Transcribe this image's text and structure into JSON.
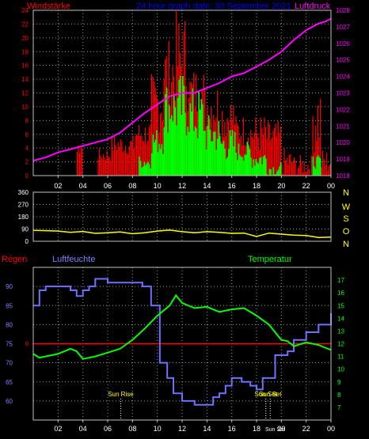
{
  "header": {
    "left_title": "Windstärke",
    "center_title": "24 hour graph date: 30 September 2021",
    "right_title": "Luftdruck"
  },
  "colors": {
    "background": "#000000",
    "frame": "#c0c0c0",
    "grid": "#9a9a9a",
    "wind_gust": "#ff0000",
    "wind_avg": "#00ff00",
    "pressure": "#ff00ff",
    "direction": "#ffff00",
    "humidity": "#7070ff",
    "temperature": "#00ff00",
    "rain": "#ff0000",
    "label_red": "#ff0000",
    "label_blue": "#0000ff",
    "label_magenta": "#ff00ff",
    "label_yellow": "#ffff00",
    "label_green": "#00ff00",
    "label_humidity": "#8080ff",
    "event_label": "#ffff00"
  },
  "x_ticks": [
    "02",
    "04",
    "06",
    "08",
    "10",
    "12",
    "14",
    "16",
    "18",
    "20",
    "22",
    "00"
  ],
  "chart_data": [
    {
      "type": "bar",
      "name": "wind",
      "ylabel": "Windstärke",
      "ylim": [
        0,
        24
      ],
      "y_ticks": [
        "0",
        "2",
        "4",
        "6",
        "8",
        "10",
        "12",
        "14",
        "16",
        "18",
        "20",
        "22",
        "24"
      ],
      "y2label": "Luftdruck",
      "y2lim": [
        1018,
        1028
      ],
      "y2_ticks": [
        "1018",
        "1019",
        "1020",
        "1021",
        "1022",
        "1023",
        "1024",
        "1025",
        "1026",
        "1027",
        "1028"
      ],
      "xlim": [
        0,
        24
      ],
      "grid": true,
      "gust_segments": [
        [
          2.0,
          3.5,
          0,
          0
        ],
        [
          3.5,
          4.0,
          3,
          5
        ],
        [
          4.0,
          5.2,
          0,
          0
        ],
        [
          5.2,
          6.3,
          2,
          4
        ],
        [
          6.3,
          8.2,
          3,
          6
        ],
        [
          8.2,
          9.5,
          4,
          8
        ],
        [
          9.5,
          10.5,
          6,
          15
        ],
        [
          10.5,
          11.5,
          10,
          20
        ],
        [
          11.5,
          12.6,
          9,
          24
        ],
        [
          12.6,
          13.8,
          8,
          16
        ],
        [
          13.8,
          15.0,
          6,
          14
        ],
        [
          15.0,
          16.3,
          5,
          12
        ],
        [
          16.3,
          17.5,
          4,
          9
        ],
        [
          17.5,
          18.8,
          3,
          9
        ],
        [
          18.8,
          20.0,
          3,
          8
        ],
        [
          20.0,
          21.0,
          0,
          4
        ],
        [
          21.0,
          22.5,
          0,
          3
        ],
        [
          22.5,
          23.2,
          3,
          14
        ],
        [
          23.2,
          24.0,
          0,
          4
        ]
      ],
      "avg_segments": [
        [
          8.5,
          9.5,
          1,
          3
        ],
        [
          9.5,
          10.5,
          3,
          7
        ],
        [
          10.5,
          11.5,
          6,
          14
        ],
        [
          11.5,
          12.6,
          5,
          15
        ],
        [
          12.6,
          13.8,
          4,
          13
        ],
        [
          13.8,
          15.0,
          3,
          9
        ],
        [
          15.0,
          16.3,
          2,
          7
        ],
        [
          16.3,
          17.5,
          2,
          5
        ],
        [
          17.5,
          18.8,
          1,
          4
        ],
        [
          18.8,
          20.0,
          0,
          2
        ],
        [
          22.5,
          23.2,
          1,
          3
        ]
      ],
      "pressure_x": [
        0,
        1,
        2,
        3,
        4,
        5,
        6,
        7,
        8,
        9,
        10,
        11,
        12,
        13,
        14,
        15,
        16,
        17,
        18,
        19,
        20,
        21,
        22,
        23,
        23.5,
        24
      ],
      "pressure_y": [
        1018.9,
        1019.1,
        1019.4,
        1019.6,
        1019.8,
        1020.0,
        1020.2,
        1020.6,
        1021.2,
        1021.8,
        1022.3,
        1022.8,
        1023.0,
        1023.0,
        1023.3,
        1023.6,
        1024.0,
        1024.2,
        1024.6,
        1025.0,
        1025.5,
        1026.2,
        1026.8,
        1027.2,
        1027.3,
        1027.5
      ]
    },
    {
      "type": "line",
      "name": "wind_direction",
      "ylim": [
        0,
        360
      ],
      "y_ticks": [
        "0",
        "90",
        "180",
        "270",
        "360"
      ],
      "right_labels": [
        "N",
        "W",
        "S",
        "O",
        "N"
      ],
      "xlim": [
        0,
        24
      ],
      "grid": true,
      "x": [
        0,
        1,
        2,
        3,
        4,
        5,
        6,
        7,
        8,
        9,
        10,
        11,
        12,
        13,
        14,
        15,
        16,
        17,
        18,
        19,
        20,
        21,
        22,
        23,
        24
      ],
      "y": [
        80,
        78,
        75,
        65,
        72,
        58,
        62,
        68,
        55,
        62,
        75,
        82,
        70,
        62,
        70,
        65,
        58,
        60,
        35,
        60,
        52,
        45,
        42,
        28,
        30
      ]
    },
    {
      "type": "line",
      "name": "humidity_temperature",
      "label_left": "Regen",
      "label_humidity": "Luftfeuchte",
      "label_temperature": "Temperatur",
      "ylim_humidity": [
        55,
        95
      ],
      "y_ticks_humidity": [
        "60",
        "65",
        "70",
        "75",
        "80",
        "85",
        "90"
      ],
      "ylim_temperature": [
        6,
        18
      ],
      "y_ticks_temperature": [
        "7",
        "8",
        "9",
        "10",
        "11",
        "12",
        "13",
        "14",
        "15",
        "16",
        "17"
      ],
      "rain_value_label": "0",
      "rain_level": 75,
      "xlim": [
        0,
        24
      ],
      "grid": true,
      "humidity_x": [
        0,
        0.5,
        1,
        2,
        3,
        3.5,
        4,
        4.5,
        5,
        6,
        7,
        8,
        8.8,
        9.5,
        10.2,
        10.8,
        11.3,
        12,
        13,
        14,
        14.5,
        15,
        15.5,
        16,
        16.8,
        17.5,
        18,
        18.5,
        19.5,
        20.5,
        21,
        22,
        23,
        24
      ],
      "humidity": [
        85,
        89,
        90,
        90,
        89,
        87.5,
        89,
        90,
        92,
        91,
        91,
        91,
        90,
        85,
        70,
        66,
        62,
        60,
        59,
        59,
        61,
        62,
        64,
        66,
        65,
        64,
        63,
        66,
        72,
        73,
        76,
        78,
        80,
        83
      ],
      "temperature_x": [
        0,
        0.5,
        1,
        2,
        3,
        3.5,
        4,
        5,
        6,
        7,
        8,
        9,
        10,
        11,
        11.5,
        12,
        13,
        14,
        15,
        16,
        17,
        18,
        19,
        20,
        20.5,
        21,
        22,
        23,
        24
      ],
      "temperature": [
        11.2,
        10.9,
        11.0,
        11.2,
        11.6,
        11.4,
        10.8,
        11.0,
        11.3,
        11.6,
        12.3,
        13.2,
        14.2,
        15.0,
        15.8,
        15.2,
        14.8,
        14.9,
        14.5,
        14.7,
        14.8,
        14.2,
        13.5,
        12.3,
        12.2,
        11.8,
        12.1,
        11.9,
        11.5
      ],
      "annotations": [
        {
          "text": "Sun Rise",
          "x": 7.05
        },
        {
          "text": "Sun Set",
          "x": 18.75
        },
        {
          "text": "Sun Set",
          "x": 19.1
        }
      ]
    }
  ]
}
